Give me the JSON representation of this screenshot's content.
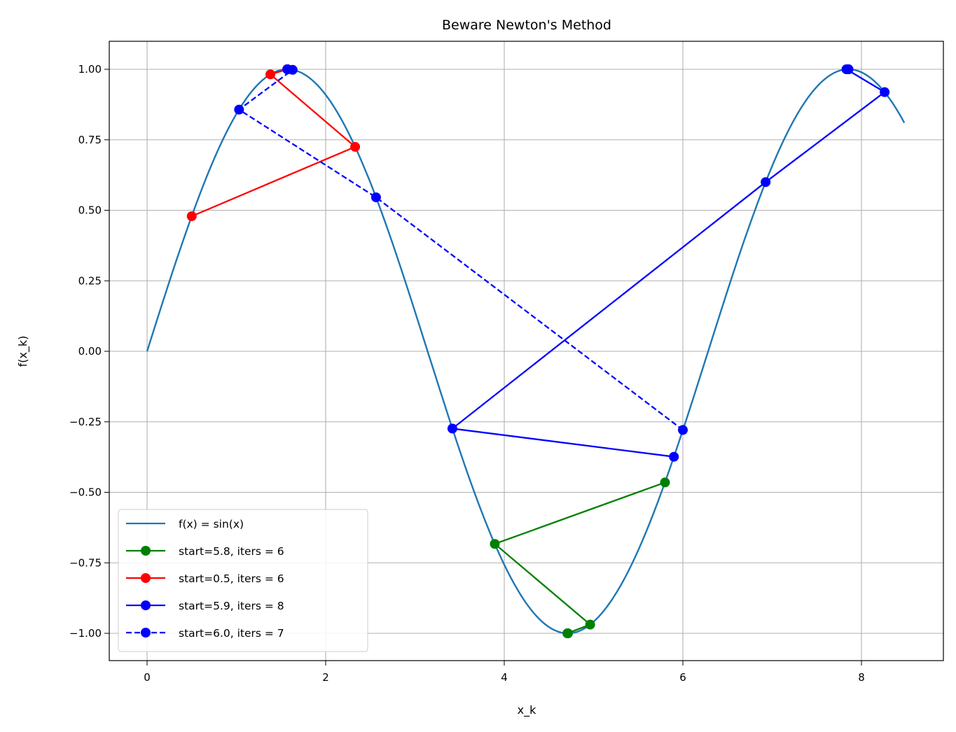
{
  "chart_data": {
    "type": "line",
    "title": "Beware Newton's Method",
    "xlabel": "x_k",
    "ylabel": "f(x_k)",
    "xlim": [
      -0.42,
      8.92
    ],
    "ylim": [
      -1.1,
      1.1
    ],
    "grid": true,
    "xticks": [
      0,
      2,
      4,
      6,
      8
    ],
    "xtick_labels": [
      "0",
      "2",
      "4",
      "6",
      "8"
    ],
    "yticks": [
      1.0,
      0.75,
      0.5,
      0.25,
      0.0,
      -0.25,
      -0.5,
      -0.75,
      -1.0
    ],
    "ytick_labels": [
      "1.00",
      "0.75",
      "0.50",
      "0.25",
      "0.00",
      "−0.25",
      "−0.50",
      "−0.75",
      "−1.00"
    ],
    "legend_position": "lower-left",
    "curve": {
      "name": "f(x) = sin(x)",
      "function": "sin",
      "x_range": [
        0,
        8.48
      ],
      "color": "#1f77b4"
    },
    "series": [
      {
        "name": "start=5.8, iters = 6",
        "color": "#008000",
        "style": "solid",
        "x": [
          5.8,
          3.894,
          4.962,
          4.707,
          4.7124,
          4.7124
        ],
        "y": [
          -0.465,
          -0.683,
          -0.969,
          -1.0,
          -1.0,
          -1.0
        ]
      },
      {
        "name": "start=0.5, iters = 6",
        "color": "#ff0000",
        "style": "solid",
        "x": [
          0.5,
          2.33,
          1.381,
          1.573,
          1.5708,
          1.5708
        ],
        "y": [
          0.479,
          0.725,
          0.982,
          1.0,
          1.0,
          1.0
        ]
      },
      {
        "name": "start=5.9, iters = 8",
        "color": "#0000ff",
        "style": "solid",
        "x": [
          5.9,
          3.419,
          6.927,
          8.26,
          7.832,
          7.854,
          7.854,
          7.854
        ],
        "y": [
          -0.374,
          -0.274,
          0.6,
          0.919,
          1.0,
          1.0,
          1.0,
          1.0
        ]
      },
      {
        "name": "start=6.0, iters = 7",
        "color": "#0000ff",
        "style": "dashed",
        "x": [
          6.0,
          2.564,
          1.03,
          1.63,
          1.5707,
          1.5708,
          1.5708
        ],
        "y": [
          -0.279,
          0.546,
          0.857,
          0.998,
          1.0,
          1.0,
          1.0
        ]
      }
    ]
  }
}
